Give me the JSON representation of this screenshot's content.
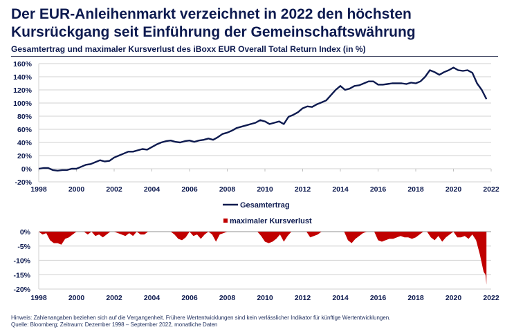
{
  "header": {
    "title_line1": "Der EUR-Anleihenmarkt verzeichnet in 2022 den höchsten",
    "title_line2": "Kursrückgang seit Einführung der Gemeinschaftswährung",
    "subtitle": "Gesamtertrag und maximaler Kursverlust des iBoxx EUR Overall Total Return Index (in %)"
  },
  "footer": {
    "note": "Hinweis: Zahlenangaben beziehen sich auf die Vergangenheit. Frühere Wertentwicklungen sind kein verlässlicher Indikator für künftige Wertentwicklungen.",
    "source": "Quelle: Bloomberg; Zeitraum: Dezember 1998 – September 2022, monatliche Daten"
  },
  "colors": {
    "line": "#0d1a4f",
    "drawdown": "#c00000",
    "grid": "#d9d9d9",
    "text": "#0d1a4f"
  },
  "chart_data": [
    {
      "type": "line",
      "title": "Gesamtertrag",
      "xlabel": "",
      "ylabel": "",
      "xlim": [
        1998,
        2022
      ],
      "ylim": [
        -20,
        160
      ],
      "x_ticks": [
        "1998",
        "2000",
        "2002",
        "2004",
        "2006",
        "2008",
        "2010",
        "2012",
        "2014",
        "2016",
        "2018",
        "2020",
        "2022"
      ],
      "y_ticks": [
        "-20%",
        "0%",
        "20%",
        "40%",
        "60%",
        "80%",
        "100%",
        "120%",
        "140%",
        "160%"
      ],
      "grid": true,
      "legend": "bottom-center",
      "series": [
        {
          "name": "Gesamtertrag",
          "x": [
            1998.0,
            1998.25,
            1998.5,
            1998.75,
            1999.0,
            1999.25,
            1999.5,
            1999.75,
            2000.0,
            2000.25,
            2000.5,
            2000.75,
            2001.0,
            2001.25,
            2001.5,
            2001.75,
            2002.0,
            2002.25,
            2002.5,
            2002.75,
            2003.0,
            2003.25,
            2003.5,
            2003.75,
            2004.0,
            2004.25,
            2004.5,
            2004.75,
            2005.0,
            2005.25,
            2005.5,
            2005.75,
            2006.0,
            2006.25,
            2006.5,
            2006.75,
            2007.0,
            2007.25,
            2007.5,
            2007.75,
            2008.0,
            2008.25,
            2008.5,
            2008.75,
            2009.0,
            2009.25,
            2009.5,
            2009.75,
            2010.0,
            2010.25,
            2010.5,
            2010.75,
            2011.0,
            2011.25,
            2011.5,
            2011.75,
            2012.0,
            2012.25,
            2012.5,
            2012.75,
            2013.0,
            2013.25,
            2013.5,
            2013.75,
            2014.0,
            2014.25,
            2014.5,
            2014.75,
            2015.0,
            2015.25,
            2015.5,
            2015.75,
            2016.0,
            2016.25,
            2016.5,
            2016.75,
            2017.0,
            2017.25,
            2017.5,
            2017.75,
            2018.0,
            2018.25,
            2018.5,
            2018.75,
            2019.0,
            2019.25,
            2019.5,
            2019.75,
            2020.0,
            2020.25,
            2020.5,
            2020.75,
            2021.0,
            2021.25,
            2021.5,
            2021.75
          ],
          "values": [
            0,
            1,
            1,
            -2,
            -3,
            -2,
            -2,
            0,
            0,
            3,
            6,
            7,
            10,
            13,
            11,
            12,
            17,
            20,
            23,
            26,
            26,
            28,
            30,
            29,
            33,
            37,
            40,
            42,
            43,
            41,
            40,
            42,
            43,
            41,
            43,
            44,
            46,
            44,
            48,
            53,
            55,
            58,
            62,
            64,
            66,
            68,
            70,
            74,
            72,
            68,
            70,
            72,
            68,
            79,
            82,
            86,
            92,
            95,
            94,
            98,
            101,
            104,
            112,
            120,
            126,
            120,
            122,
            126,
            127,
            130,
            133,
            133,
            128,
            128,
            129,
            130,
            130,
            130,
            129,
            131,
            130,
            133,
            140,
            150,
            147,
            143,
            147,
            150,
            154,
            150,
            149,
            150,
            146,
            130,
            120,
            106
          ],
          "color": "#0d1a4f"
        }
      ]
    },
    {
      "type": "area",
      "title": "maximaler Kursverlust",
      "xlabel": "",
      "ylabel": "",
      "xlim": [
        1998,
        2022
      ],
      "ylim": [
        -20,
        0
      ],
      "x_ticks": [
        "1998",
        "2000",
        "2002",
        "2004",
        "2006",
        "2008",
        "2010",
        "2012",
        "2014",
        "2016",
        "2018",
        "2020",
        "2022"
      ],
      "y_ticks": [
        "0%",
        "-5%",
        "-10%",
        "-15%",
        "-20%"
      ],
      "grid": true,
      "legend": "top-center",
      "series": [
        {
          "name": "maximaler Kursverlust",
          "x": [
            1998.0,
            1998.2,
            1998.4,
            1998.6,
            1998.8,
            1999.0,
            1999.2,
            1999.4,
            1999.6,
            1999.8,
            2000.0,
            2000.4,
            2000.6,
            2000.8,
            2001.0,
            2001.2,
            2001.4,
            2001.6,
            2001.8,
            2002.0,
            2002.6,
            2002.8,
            2003.0,
            2003.2,
            2003.4,
            2003.6,
            2003.8,
            2004.0,
            2005.0,
            2005.2,
            2005.4,
            2005.6,
            2005.8,
            2006.0,
            2006.2,
            2006.4,
            2006.6,
            2006.8,
            2007.0,
            2007.2,
            2007.4,
            2007.6,
            2007.8,
            2008.0,
            2008.2,
            2009.6,
            2009.8,
            2010.0,
            2010.2,
            2010.4,
            2010.6,
            2010.8,
            2011.0,
            2011.2,
            2011.4,
            2012.2,
            2012.4,
            2012.6,
            2012.8,
            2013.0,
            2014.2,
            2014.4,
            2014.6,
            2014.8,
            2015.0,
            2015.2,
            2015.4,
            2015.6,
            2015.8,
            2016.0,
            2016.2,
            2016.4,
            2016.6,
            2016.8,
            2017.0,
            2017.2,
            2017.4,
            2017.6,
            2017.8,
            2018.0,
            2018.2,
            2018.4,
            2018.6,
            2018.8,
            2019.0,
            2019.2,
            2019.4,
            2019.6,
            2019.8,
            2020.0,
            2020.2,
            2020.4,
            2020.6,
            2020.8,
            2021.0,
            2021.2,
            2021.4,
            2021.6,
            2021.7,
            2021.75
          ],
          "values": [
            0,
            -1,
            -0.5,
            -3,
            -4,
            -4,
            -4.5,
            -2.5,
            -2,
            -1,
            0,
            0,
            -1,
            0,
            -1.5,
            -1,
            -2,
            -1,
            0,
            0,
            -1.5,
            -0.5,
            -1.5,
            0,
            -1,
            -1,
            0,
            0,
            0,
            -1,
            -2.5,
            -3,
            -2,
            0,
            -1.5,
            -1,
            -2.5,
            -1,
            0,
            -1,
            -3.5,
            -1,
            -0.5,
            0,
            0,
            0,
            -1.5,
            -3.5,
            -4,
            -3.5,
            -2.5,
            -1,
            -3.5,
            -1.5,
            0,
            0,
            -2,
            -1.5,
            -1,
            0,
            0,
            -3,
            -4,
            -2.5,
            -1.5,
            -0.5,
            0,
            0,
            0,
            -3,
            -3.5,
            -3,
            -2.5,
            -2.5,
            -2,
            -1.5,
            -2,
            -2,
            -2.5,
            -2,
            -1,
            0,
            0,
            -2,
            -3,
            -1.5,
            -3.5,
            -2,
            -1,
            0,
            -2,
            -2,
            -1.5,
            -2.5,
            -1,
            -3,
            -8,
            -14,
            -15,
            -18.5
          ],
          "color": "#c00000"
        }
      ]
    }
  ]
}
